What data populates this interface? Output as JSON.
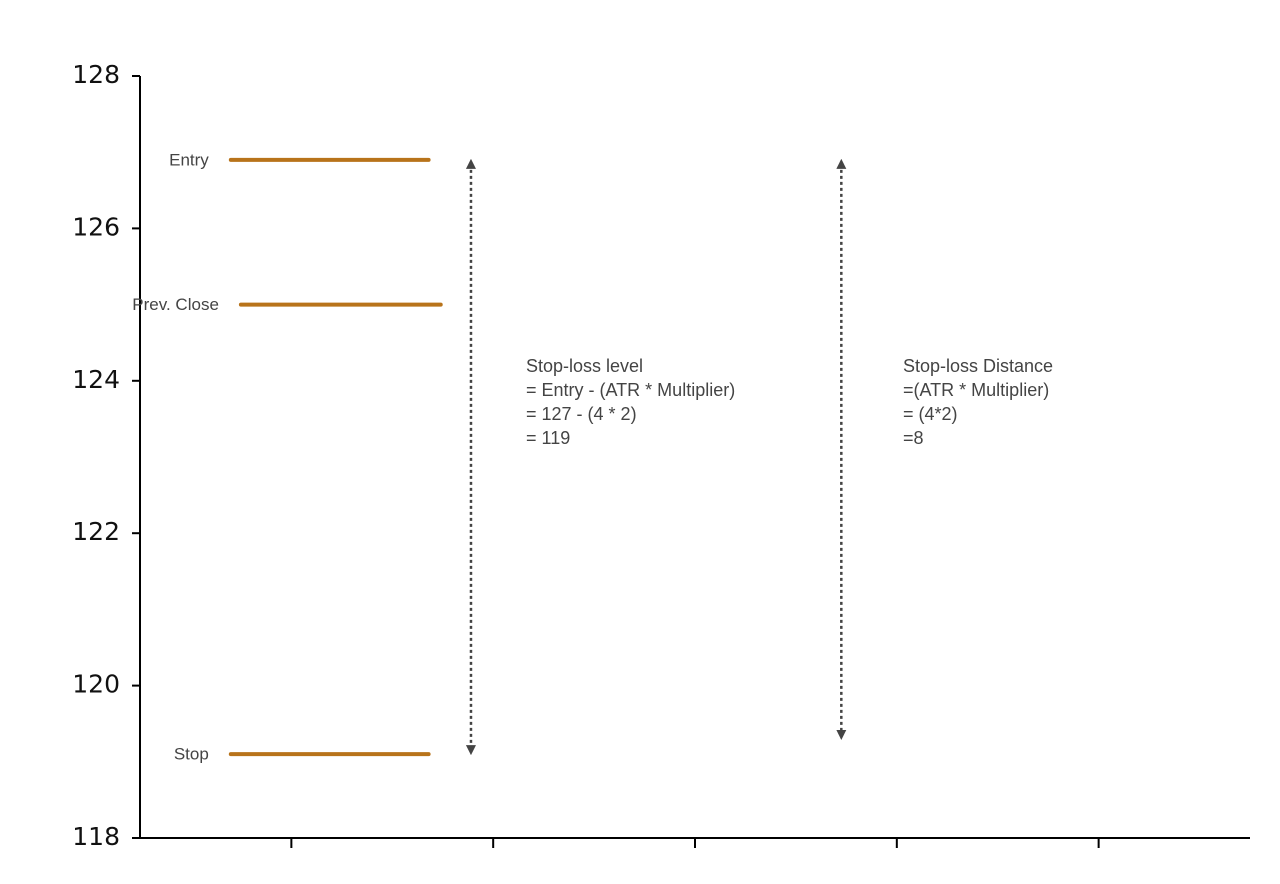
{
  "chart_data": {
    "type": "levels",
    "ylim": [
      118,
      128
    ],
    "yticks": [
      118,
      120,
      122,
      124,
      126,
      128
    ],
    "xlim": [
      -0.75,
      4.75
    ],
    "xticks": [
      0,
      1,
      2,
      3,
      4
    ],
    "color": "#b8731a",
    "levels": [
      {
        "name": "Entry",
        "value": 126.9,
        "x": [
          -0.3,
          0.68
        ]
      },
      {
        "name": "Prev. Close",
        "value": 125,
        "x": [
          -0.25,
          0.74
        ]
      },
      {
        "name": "Stop",
        "value": 119.1,
        "x": [
          -0.3,
          0.68
        ]
      }
    ],
    "arrows": [
      {
        "x": 0.89,
        "from": 126.9,
        "to": 119.1
      },
      {
        "x": 2.725,
        "from": 126.9,
        "to": 119.3
      }
    ],
    "annotations": [
      {
        "lines": [
          "Stop-loss level",
          "= Entry - (ATR * Multiplier)",
          "= 127 - (4 * 2)",
          "= 119"
        ]
      },
      {
        "lines": [
          "Stop-loss Distance",
          "=(ATR * Multiplier)",
          "= (4*2)",
          "=8"
        ]
      }
    ]
  }
}
